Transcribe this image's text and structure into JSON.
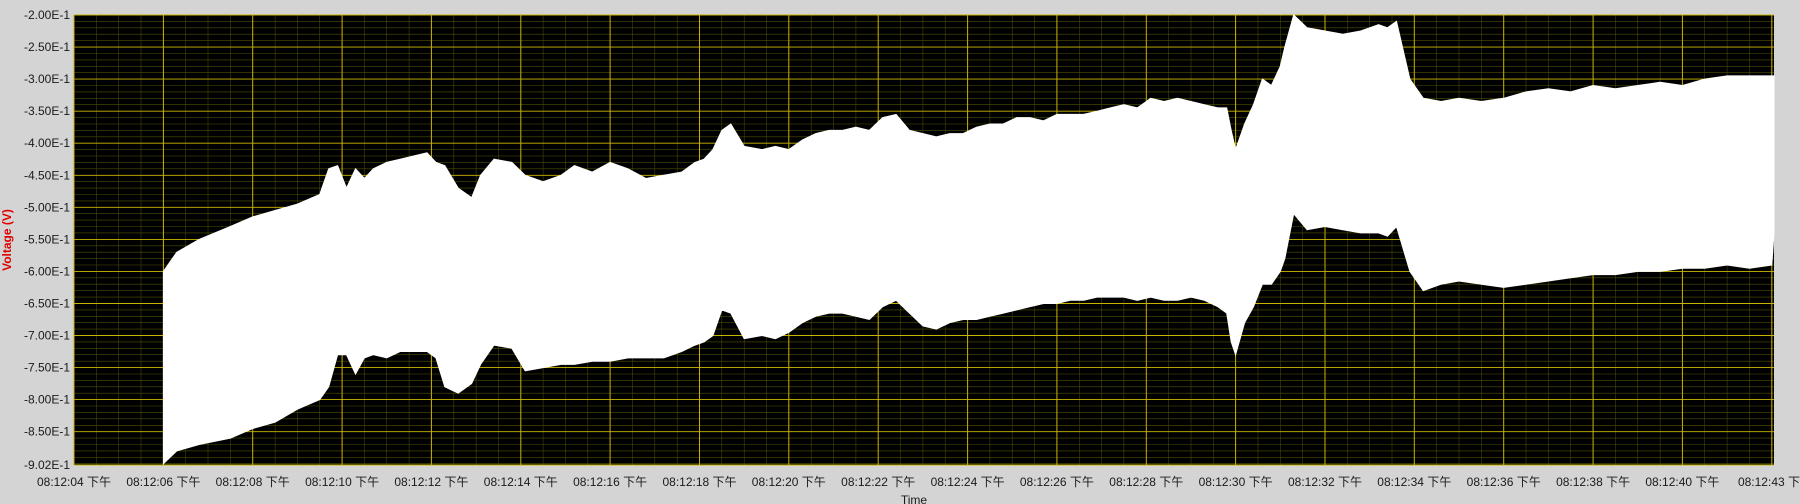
{
  "chart_data": {
    "type": "area",
    "ylabel": "Voltage (V)",
    "xlabel": "Time",
    "ylim": [
      -0.902,
      -0.2
    ],
    "y_ticks": [
      "-2.00E-1",
      "-2.50E-1",
      "-3.00E-1",
      "-3.50E-1",
      "-4.00E-1",
      "-4.50E-1",
      "-5.00E-1",
      "-5.50E-1",
      "-6.00E-1",
      "-6.50E-1",
      "-7.00E-1",
      "-7.50E-1",
      "-8.00E-1",
      "-8.50E-1",
      "-9.02E-1"
    ],
    "y_tick_values": [
      -0.2,
      -0.25,
      -0.3,
      -0.35,
      -0.4,
      -0.45,
      -0.5,
      -0.55,
      -0.6,
      -0.65,
      -0.7,
      -0.75,
      -0.8,
      -0.85,
      -0.902
    ],
    "x_ticks": [
      "08:12:04 下午",
      "08:12:06 下午",
      "08:12:08 下午",
      "08:12:10 下午",
      "08:12:12 下午",
      "08:12:14 下午",
      "08:12:16 下午",
      "08:12:18 下午",
      "08:12:20 下午",
      "08:12:22 下午",
      "08:12:24 下午",
      "08:12:26 下午",
      "08:12:28 下午",
      "08:12:30 下午",
      "08:12:32 下午",
      "08:12:34 下午",
      "08:12:36 下午",
      "08:12:38 下午",
      "08:12:40 下午",
      "08:12:43 下"
    ],
    "x_tick_seconds": [
      4,
      6,
      8,
      10,
      12,
      14,
      16,
      18,
      20,
      22,
      24,
      26,
      28,
      30,
      32,
      34,
      36,
      38,
      40,
      42
    ],
    "xlim_seconds": [
      4,
      42.05
    ],
    "grid": true,
    "colors": {
      "plot_background": "#000000",
      "major_grid": "#c8b400",
      "minor_grid": "#505000",
      "signal": "#ffffff",
      "frame": "#d4d4d4",
      "ylabel": "#e00000"
    },
    "series": [
      {
        "x": [
          6.0,
          6.3,
          6.8,
          7.5,
          8.0,
          8.5,
          9.0,
          9.5,
          9.7,
          9.9,
          10.1,
          10.3,
          10.5,
          10.7,
          11.0,
          11.3,
          11.6,
          11.9,
          12.1,
          12.3,
          12.6,
          12.9,
          13.1,
          13.4,
          13.8,
          14.1,
          14.5,
          14.9,
          15.2,
          15.6,
          16.0,
          16.4,
          16.8,
          17.2,
          17.6,
          17.9,
          18.1,
          18.3,
          18.5,
          18.7,
          19.0,
          19.4,
          19.7,
          20.0,
          20.3,
          20.6,
          20.9,
          21.2,
          21.5,
          21.8,
          22.1,
          22.4,
          22.7,
          23.0,
          23.3,
          23.6,
          23.9,
          24.2,
          24.5,
          24.8,
          25.1,
          25.4,
          25.7,
          26.0,
          26.3,
          26.6,
          26.9,
          27.2,
          27.5,
          27.8,
          28.1,
          28.4,
          28.7,
          29.0,
          29.3,
          29.6,
          29.8,
          29.9,
          30.0,
          30.2,
          30.4,
          30.6,
          30.8,
          31.0,
          31.1,
          31.3,
          31.6,
          32.0,
          32.4,
          32.8,
          33.2,
          33.4,
          33.6,
          33.9,
          34.2,
          34.6,
          35.0,
          35.5,
          36.0,
          36.5,
          37.0,
          37.5,
          38.0,
          38.5,
          39.0,
          39.5,
          40.0,
          40.5,
          41.0,
          41.5,
          42.0,
          42.05
        ],
        "max": [
          -0.6,
          -0.57,
          -0.55,
          -0.53,
          -0.515,
          -0.505,
          -0.495,
          -0.48,
          -0.44,
          -0.435,
          -0.47,
          -0.44,
          -0.455,
          -0.44,
          -0.43,
          -0.425,
          -0.42,
          -0.415,
          -0.43,
          -0.435,
          -0.47,
          -0.485,
          -0.45,
          -0.425,
          -0.43,
          -0.45,
          -0.46,
          -0.45,
          -0.435,
          -0.445,
          -0.43,
          -0.44,
          -0.455,
          -0.45,
          -0.445,
          -0.43,
          -0.425,
          -0.41,
          -0.38,
          -0.37,
          -0.405,
          -0.41,
          -0.405,
          -0.41,
          -0.395,
          -0.385,
          -0.38,
          -0.38,
          -0.375,
          -0.38,
          -0.36,
          -0.355,
          -0.38,
          -0.385,
          -0.39,
          -0.385,
          -0.385,
          -0.375,
          -0.37,
          -0.37,
          -0.36,
          -0.36,
          -0.365,
          -0.355,
          -0.355,
          -0.355,
          -0.35,
          -0.345,
          -0.34,
          -0.345,
          -0.33,
          -0.335,
          -0.33,
          -0.335,
          -0.34,
          -0.345,
          -0.345,
          -0.38,
          -0.41,
          -0.37,
          -0.34,
          -0.3,
          -0.31,
          -0.28,
          -0.25,
          -0.2,
          -0.22,
          -0.225,
          -0.23,
          -0.225,
          -0.215,
          -0.22,
          -0.21,
          -0.3,
          -0.33,
          -0.335,
          -0.33,
          -0.335,
          -0.33,
          -0.32,
          -0.315,
          -0.32,
          -0.31,
          -0.315,
          -0.31,
          -0.305,
          -0.31,
          -0.3,
          -0.295,
          -0.295,
          -0.295,
          -0.295
        ],
        "min": [
          -0.9,
          -0.88,
          -0.87,
          -0.86,
          -0.845,
          -0.835,
          -0.815,
          -0.8,
          -0.78,
          -0.73,
          -0.73,
          -0.76,
          -0.735,
          -0.73,
          -0.735,
          -0.725,
          -0.725,
          -0.725,
          -0.735,
          -0.78,
          -0.79,
          -0.775,
          -0.745,
          -0.715,
          -0.72,
          -0.755,
          -0.75,
          -0.745,
          -0.745,
          -0.74,
          -0.74,
          -0.735,
          -0.735,
          -0.735,
          -0.725,
          -0.715,
          -0.71,
          -0.7,
          -0.66,
          -0.665,
          -0.705,
          -0.7,
          -0.705,
          -0.695,
          -0.68,
          -0.67,
          -0.665,
          -0.665,
          -0.67,
          -0.675,
          -0.655,
          -0.645,
          -0.665,
          -0.685,
          -0.69,
          -0.68,
          -0.675,
          -0.675,
          -0.67,
          -0.665,
          -0.66,
          -0.655,
          -0.65,
          -0.65,
          -0.645,
          -0.645,
          -0.64,
          -0.64,
          -0.64,
          -0.645,
          -0.64,
          -0.645,
          -0.645,
          -0.64,
          -0.645,
          -0.655,
          -0.665,
          -0.71,
          -0.73,
          -0.68,
          -0.655,
          -0.62,
          -0.62,
          -0.6,
          -0.58,
          -0.51,
          -0.535,
          -0.53,
          -0.535,
          -0.54,
          -0.54,
          -0.545,
          -0.53,
          -0.6,
          -0.63,
          -0.62,
          -0.615,
          -0.62,
          -0.625,
          -0.62,
          -0.615,
          -0.61,
          -0.605,
          -0.605,
          -0.6,
          -0.6,
          -0.595,
          -0.595,
          -0.59,
          -0.595,
          -0.59,
          -0.54
        ]
      }
    ]
  }
}
